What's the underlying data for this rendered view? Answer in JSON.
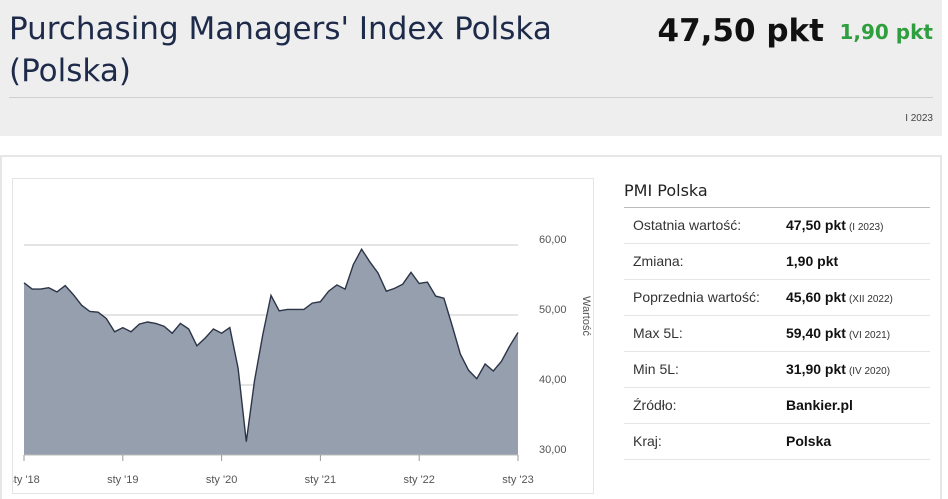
{
  "header": {
    "title": "Purchasing Managers' Index Polska (Polska)",
    "value": "47,50 pkt",
    "change": "1,90 pkt",
    "date": "I 2023",
    "change_color": "#2e9e3e"
  },
  "info": {
    "title": "PMI Polska",
    "rows": [
      {
        "label": "Ostatnia wartość:",
        "value": "47,50 pkt",
        "sub": "(I 2023)"
      },
      {
        "label": "Zmiana:",
        "value": "1,90 pkt",
        "sub": ""
      },
      {
        "label": "Poprzednia wartość:",
        "value": "45,60 pkt",
        "sub": "(XII 2022)"
      },
      {
        "label": "Max 5L:",
        "value": "59,40 pkt",
        "sub": "(VI 2021)"
      },
      {
        "label": "Min 5L:",
        "value": "31,90 pkt",
        "sub": "(IV 2020)"
      },
      {
        "label": "Źródło:",
        "value": "Bankier.pl",
        "sub": ""
      },
      {
        "label": "Kraj:",
        "value": "Polska",
        "sub": ""
      }
    ]
  },
  "chart_data": {
    "type": "area",
    "ylabel": "Wartość",
    "ylim": [
      30,
      60
    ],
    "y_ticks": [
      "30,00",
      "40,00",
      "50,00",
      "60,00"
    ],
    "y_tick_values": [
      30,
      40,
      50,
      60
    ],
    "x_ticks": [
      "sty '18",
      "sty '19",
      "sty '20",
      "sty '21",
      "sty '22",
      "sty '23"
    ],
    "x_tick_values": [
      2018.0,
      2019.0,
      2020.0,
      2021.0,
      2022.0,
      2023.0
    ],
    "fill_color": "#959fae",
    "line_color": "#2b3547",
    "series": [
      {
        "x": [
          2018.0,
          2018.083,
          2018.167,
          2018.25,
          2018.333,
          2018.417,
          2018.5,
          2018.583,
          2018.667,
          2018.75,
          2018.833,
          2018.917,
          2019.0,
          2019.083,
          2019.167,
          2019.25,
          2019.333,
          2019.417,
          2019.5,
          2019.583,
          2019.667,
          2019.75,
          2019.833,
          2019.917,
          2020.0,
          2020.083,
          2020.167,
          2020.25,
          2020.333,
          2020.417,
          2020.5,
          2020.583,
          2020.667,
          2020.75,
          2020.833,
          2020.917,
          2021.0,
          2021.083,
          2021.167,
          2021.25,
          2021.333,
          2021.417,
          2021.5,
          2021.583,
          2021.667,
          2021.75,
          2021.833,
          2021.917,
          2022.0,
          2022.083,
          2022.167,
          2022.25,
          2022.333,
          2022.417,
          2022.5,
          2022.583,
          2022.667,
          2022.75,
          2022.833,
          2022.917,
          2023.0
        ],
        "values": [
          54.6,
          53.7,
          53.7,
          53.9,
          53.3,
          54.2,
          52.9,
          51.4,
          50.5,
          50.4,
          49.5,
          47.6,
          48.2,
          47.6,
          48.7,
          49.0,
          48.8,
          48.4,
          47.4,
          48.8,
          48.0,
          45.6,
          46.7,
          48.0,
          47.4,
          48.2,
          42.4,
          31.9,
          40.6,
          47.2,
          52.8,
          50.6,
          50.8,
          50.8,
          50.8,
          51.7,
          51.9,
          53.4,
          54.3,
          53.7,
          57.2,
          59.4,
          57.6,
          56.0,
          53.4,
          53.8,
          54.4,
          56.1,
          54.5,
          54.7,
          52.7,
          52.4,
          48.5,
          44.4,
          42.1,
          40.9,
          43.0,
          42.0,
          43.4,
          45.6,
          47.5
        ]
      }
    ]
  }
}
